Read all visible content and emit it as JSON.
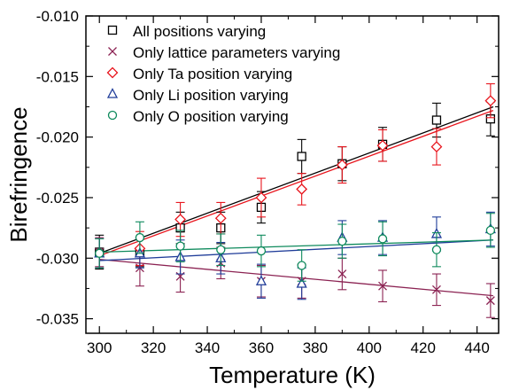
{
  "chart_data": {
    "type": "scatter",
    "xlabel": "Temperature (K)",
    "ylabel": "Birefringence",
    "xlim": [
      295,
      448
    ],
    "ylim": [
      -0.0362,
      -0.01
    ],
    "xticks": [
      300,
      320,
      340,
      360,
      380,
      400,
      420,
      440
    ],
    "yticks": [
      -0.035,
      -0.03,
      -0.025,
      -0.02,
      -0.015,
      -0.01
    ],
    "xtick_labels": [
      "300",
      "320",
      "340",
      "360",
      "380",
      "400",
      "420",
      "440"
    ],
    "ytick_labels": [
      "-0.035",
      "-0.030",
      "-0.025",
      "-0.020",
      "-0.015",
      "-0.010"
    ],
    "grid": false,
    "legend_position": "top-left",
    "series": [
      {
        "name": "All positions varying",
        "marker": "square",
        "color": "#000000",
        "x": [
          300,
          315,
          330,
          345,
          360,
          375,
          390,
          405,
          425,
          445
        ],
        "y": [
          -0.0295,
          -0.0295,
          -0.0275,
          -0.0275,
          -0.0258,
          -0.0216,
          -0.0222,
          -0.0206,
          -0.0186,
          -0.0185
        ],
        "err": [
          0.0014,
          0.0012,
          0.0013,
          0.0013,
          0.0013,
          0.0014,
          0.0014,
          0.0014,
          0.0014,
          0.0014
        ],
        "fit": [
          [
            300,
            -0.0296
          ],
          [
            446,
            -0.0175
          ]
        ]
      },
      {
        "name": "Only lattice parameters varying",
        "marker": "x",
        "color": "#8b2252",
        "x": [
          300,
          315,
          330,
          345,
          360,
          375,
          390,
          405,
          425,
          445
        ],
        "y": [
          -0.0295,
          -0.0308,
          -0.0315,
          -0.0304,
          -0.0319,
          -0.0319,
          -0.0313,
          -0.0323,
          -0.0326,
          -0.0335
        ],
        "err": [
          0.0012,
          0.0015,
          0.0013,
          0.0013,
          0.0013,
          0.0014,
          0.0013,
          0.0013,
          0.0013,
          0.0014
        ],
        "fit": [
          [
            300,
            -0.0301
          ],
          [
            446,
            -0.0331
          ]
        ]
      },
      {
        "name": "Only Ta position varying",
        "marker": "diamond",
        "color": "#e8141c",
        "x": [
          315,
          330,
          345,
          360,
          375,
          390,
          405,
          425,
          445
        ],
        "y": [
          -0.0292,
          -0.0268,
          -0.0267,
          -0.025,
          -0.0243,
          -0.0223,
          -0.0207,
          -0.0208,
          -0.017
        ],
        "err": [
          0.0014,
          0.0014,
          0.0013,
          0.0016,
          0.0013,
          0.0015,
          0.0013,
          0.0015,
          0.0014
        ],
        "fit": [
          [
            300,
            -0.0298
          ],
          [
            446,
            -0.0178
          ]
        ]
      },
      {
        "name": "Only Li position varying",
        "marker": "triangle",
        "color": "#1f3c99",
        "x": [
          300,
          315,
          330,
          345,
          360,
          375,
          390,
          405,
          425,
          445
        ],
        "y": [
          -0.0296,
          -0.0296,
          -0.0299,
          -0.03,
          -0.0319,
          -0.0321,
          -0.0283,
          -0.0283,
          -0.028,
          -0.0276
        ],
        "err": [
          0.0012,
          0.0012,
          0.0014,
          0.0013,
          0.0014,
          0.0013,
          0.0014,
          0.0014,
          0.0014,
          0.0014
        ],
        "fit": [
          [
            300,
            -0.0302
          ],
          [
            446,
            -0.0285
          ]
        ]
      },
      {
        "name": "Only O position varying",
        "marker": "circle",
        "color": "#0e8a5c",
        "x": [
          300,
          315,
          330,
          345,
          360,
          375,
          390,
          405,
          425,
          445
        ],
        "y": [
          -0.0296,
          -0.0283,
          -0.029,
          -0.0293,
          -0.0294,
          -0.0306,
          -0.0286,
          -0.0284,
          -0.0293,
          -0.0277
        ],
        "err": [
          0.0012,
          0.0013,
          0.0013,
          0.0013,
          0.0013,
          0.0013,
          0.0014,
          0.0014,
          0.0014,
          0.0014
        ],
        "fit": [
          [
            300,
            -0.0295
          ],
          [
            446,
            -0.0285
          ]
        ]
      }
    ]
  }
}
